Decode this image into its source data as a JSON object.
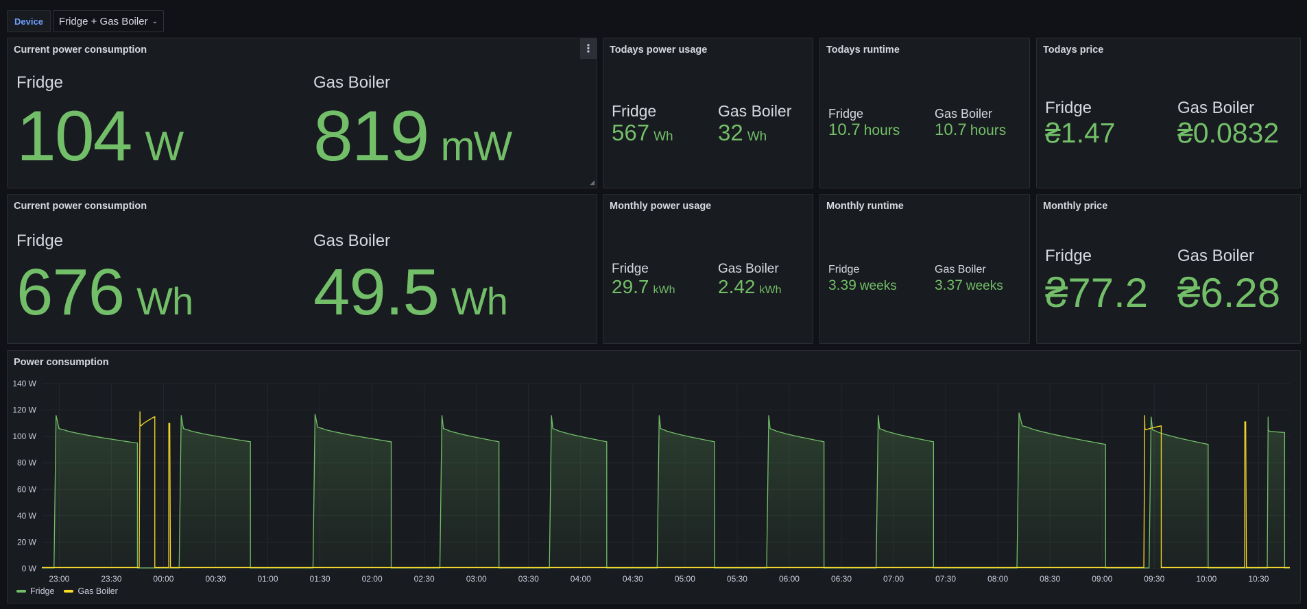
{
  "toolbar": {
    "variable_label": "Device",
    "variable_value": "Fridge + Gas Boiler"
  },
  "panels": {
    "current_power": {
      "title": "Current power consumption",
      "items": [
        {
          "name": "Fridge",
          "value": "104",
          "unit": "W"
        },
        {
          "name": "Gas Boiler",
          "value": "819",
          "unit": "mW"
        }
      ]
    },
    "todays_usage": {
      "title": "Todays power usage",
      "items": [
        {
          "name": "Fridge",
          "value": "567",
          "unit": "Wh"
        },
        {
          "name": "Gas Boiler",
          "value": "32",
          "unit": "Wh"
        }
      ]
    },
    "todays_runtime": {
      "title": "Todays runtime",
      "items": [
        {
          "name": "Fridge",
          "value": "10.7",
          "unit": "hours"
        },
        {
          "name": "Gas Boiler",
          "value": "10.7",
          "unit": "hours"
        }
      ]
    },
    "todays_price": {
      "title": "Todays price",
      "items": [
        {
          "name": "Fridge",
          "value": "₴1.47"
        },
        {
          "name": "Gas Boiler",
          "value": "₴0.0832"
        }
      ]
    },
    "current_energy": {
      "title": "Current power consumption",
      "items": [
        {
          "name": "Fridge",
          "value": "676",
          "unit": "Wh"
        },
        {
          "name": "Gas Boiler",
          "value": "49.5",
          "unit": "Wh"
        }
      ]
    },
    "monthly_usage": {
      "title": "Monthly power usage",
      "items": [
        {
          "name": "Fridge",
          "value": "29.7",
          "unit": "kWh"
        },
        {
          "name": "Gas Boiler",
          "value": "2.42",
          "unit": "kWh"
        }
      ]
    },
    "monthly_runtime": {
      "title": "Monthly runtime",
      "items": [
        {
          "name": "Fridge",
          "value": "3.39",
          "unit": "weeks"
        },
        {
          "name": "Gas Boiler",
          "value": "3.37",
          "unit": "weeks"
        }
      ]
    },
    "monthly_price": {
      "title": "Monthly price",
      "items": [
        {
          "name": "Fridge",
          "value": "₴77.2"
        },
        {
          "name": "Gas Boiler",
          "value": "₴6.28"
        }
      ]
    },
    "timeseries": {
      "title": "Power consumption"
    }
  },
  "colors": {
    "stat_green": "#73bf69",
    "gas_yellow": "#fade2a"
  },
  "chart_data": {
    "type": "line",
    "title": "Power consumption",
    "y_ticks": [
      "0 W",
      "20 W",
      "40 W",
      "60 W",
      "80 W",
      "100 W",
      "120 W",
      "140 W"
    ],
    "x_ticks": [
      "23:00",
      "23:30",
      "00:00",
      "00:30",
      "01:00",
      "01:30",
      "02:00",
      "02:30",
      "03:00",
      "03:30",
      "04:00",
      "04:30",
      "05:00",
      "05:30",
      "06:00",
      "06:30",
      "07:00",
      "07:30",
      "08:00",
      "08:30",
      "09:00",
      "09:30",
      "10:00",
      "10:30"
    ],
    "ylim": [
      0,
      140
    ],
    "grid": true,
    "legend_placement": "bottom-left",
    "series": [
      {
        "name": "Fridge",
        "color": "#73bf69",
        "fill": true,
        "cycles": [
          {
            "on": "22:57",
            "off": "23:45",
            "peak": 116,
            "end": 95
          },
          {
            "on": "00:09",
            "off": "00:50",
            "peak": 116,
            "end": 96
          },
          {
            "on": "01:26",
            "off": "02:11",
            "peak": 117,
            "end": 96
          },
          {
            "on": "02:39",
            "off": "03:13",
            "peak": 116,
            "end": 96
          },
          {
            "on": "03:42",
            "off": "04:15",
            "peak": 116,
            "end": 96
          },
          {
            "on": "04:44",
            "off": "05:17",
            "peak": 116,
            "end": 96
          },
          {
            "on": "05:47",
            "off": "06:20",
            "peak": 116,
            "end": 96
          },
          {
            "on": "06:50",
            "off": "07:23",
            "peak": 116,
            "end": 96
          },
          {
            "on": "08:11",
            "off": "09:02",
            "peak": 118,
            "end": 94
          },
          {
            "on": "09:27",
            "off": "10:01",
            "peak": 115,
            "end": 94
          },
          {
            "on": "10:35",
            "off": "10:45",
            "peak": 115,
            "end": 103
          }
        ]
      },
      {
        "name": "Gas Boiler",
        "color": "#fade2a",
        "fill": false,
        "spikes": [
          {
            "on": "23:46",
            "off": "23:55",
            "peak": 119,
            "end": 115
          },
          {
            "on": "00:03",
            "off": "00:04",
            "peak": 110,
            "end": 110
          },
          {
            "on": "09:24",
            "off": "09:34",
            "peak": 116,
            "end": 108
          },
          {
            "on": "10:22",
            "off": "10:23",
            "peak": 111,
            "end": 111
          }
        ]
      }
    ]
  }
}
